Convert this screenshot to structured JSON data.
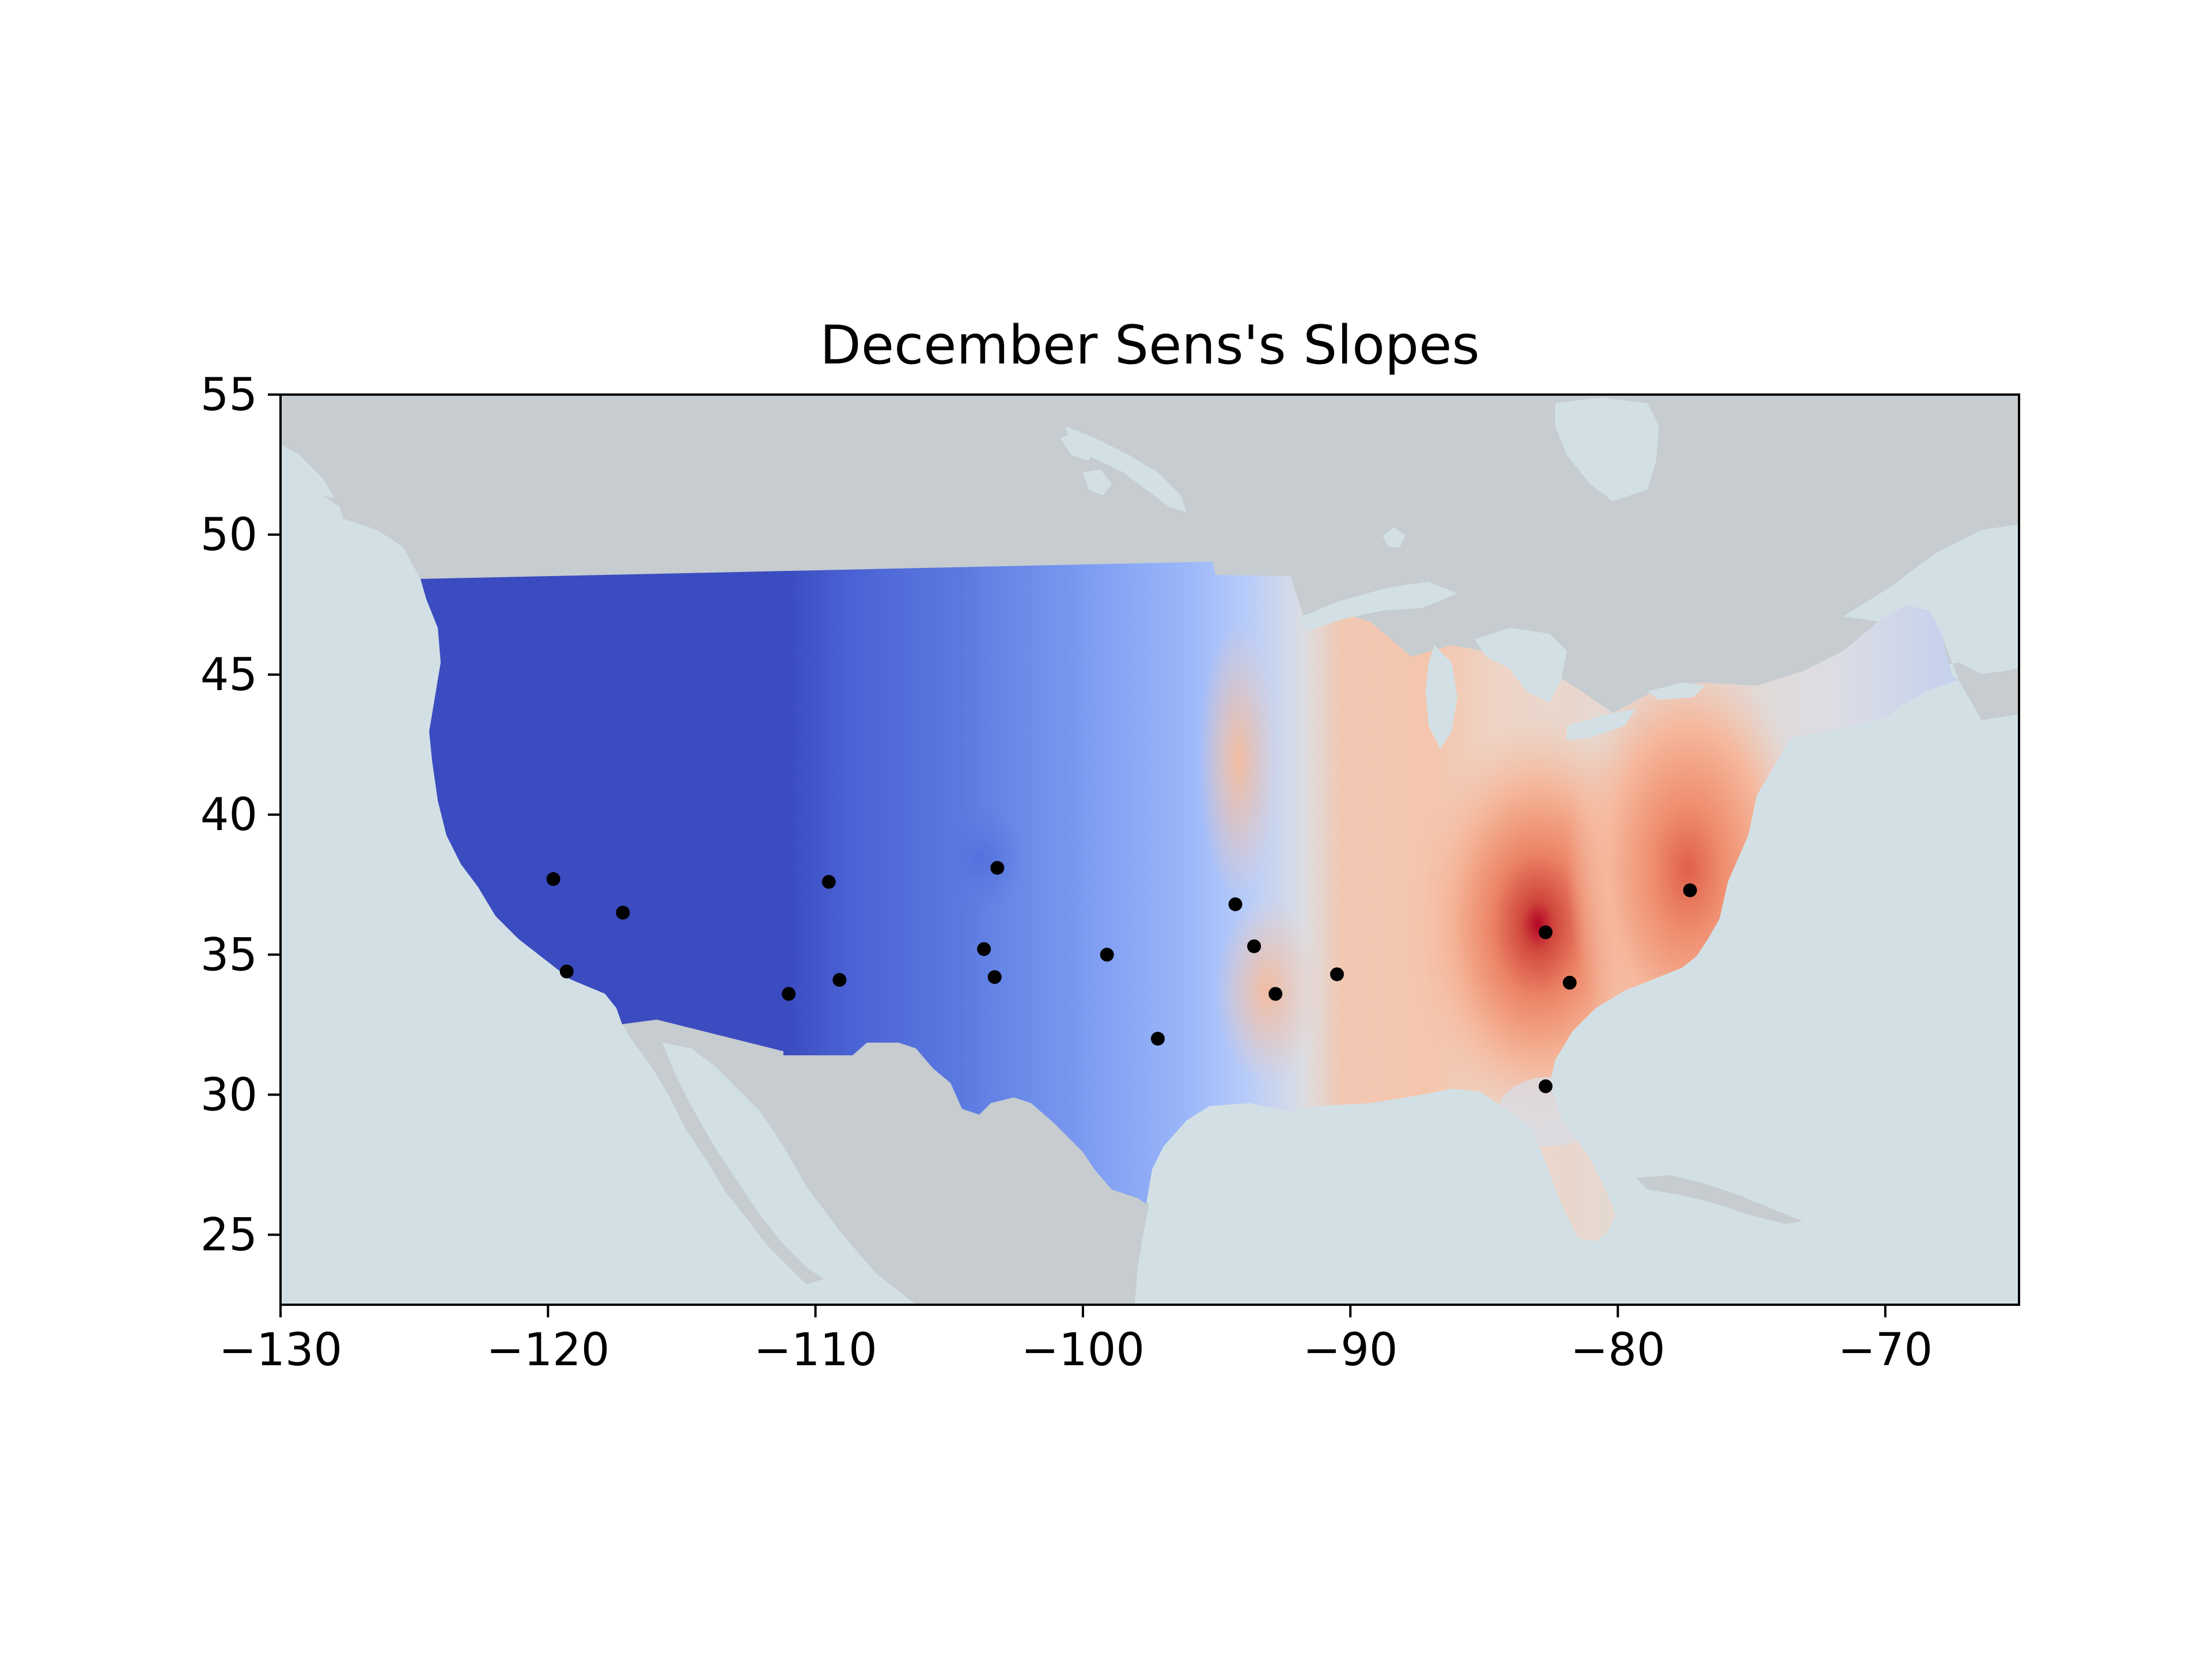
{
  "title": "December Sens's Slopes",
  "chart_data": {
    "type": "contour-map",
    "title": "December Sens's Slopes",
    "xlabel": "",
    "ylabel": "",
    "xlim": [
      -130,
      -65
    ],
    "ylim": [
      22.5,
      55
    ],
    "x_ticks": [
      -130,
      -120,
      -110,
      -100,
      -90,
      -80,
      -70
    ],
    "y_ticks": [
      25,
      30,
      35,
      40,
      45,
      50,
      55
    ],
    "x_tick_labels": [
      "−130",
      "−120",
      "−110",
      "−100",
      "−90",
      "−80",
      "−70"
    ],
    "y_tick_labels": [
      "25",
      "30",
      "35",
      "40",
      "45",
      "50",
      "55"
    ],
    "colormap": "coolwarm",
    "colors": {
      "ocean": "#d2e0e6",
      "land": "#c6cccf",
      "strong_negative": "#3b4cc0",
      "weak_negative": "#a8c2f8",
      "neutral": "#e1dad6",
      "weak_positive": "#f4c2aa",
      "strong_positive": "#b40426",
      "station_marker": "#000000"
    },
    "stations": [
      {
        "lon": -119.8,
        "lat": 37.7
      },
      {
        "lon": -117.2,
        "lat": 36.5
      },
      {
        "lon": -119.3,
        "lat": 34.4
      },
      {
        "lon": -109.5,
        "lat": 37.6
      },
      {
        "lon": -109.1,
        "lat": 34.1
      },
      {
        "lon": -111.0,
        "lat": 33.6
      },
      {
        "lon": -103.2,
        "lat": 38.1
      },
      {
        "lon": -103.7,
        "lat": 35.2
      },
      {
        "lon": -103.3,
        "lat": 34.2
      },
      {
        "lon": -99.1,
        "lat": 35.0
      },
      {
        "lon": -97.2,
        "lat": 32.0
      },
      {
        "lon": -94.3,
        "lat": 36.8
      },
      {
        "lon": -93.6,
        "lat": 35.3
      },
      {
        "lon": -92.8,
        "lat": 33.6
      },
      {
        "lon": -90.5,
        "lat": 34.3
      },
      {
        "lon": -82.7,
        "lat": 35.8
      },
      {
        "lon": -81.8,
        "lat": 34.0
      },
      {
        "lon": -82.7,
        "lat": 30.3
      },
      {
        "lon": -77.3,
        "lat": 37.3
      }
    ]
  }
}
